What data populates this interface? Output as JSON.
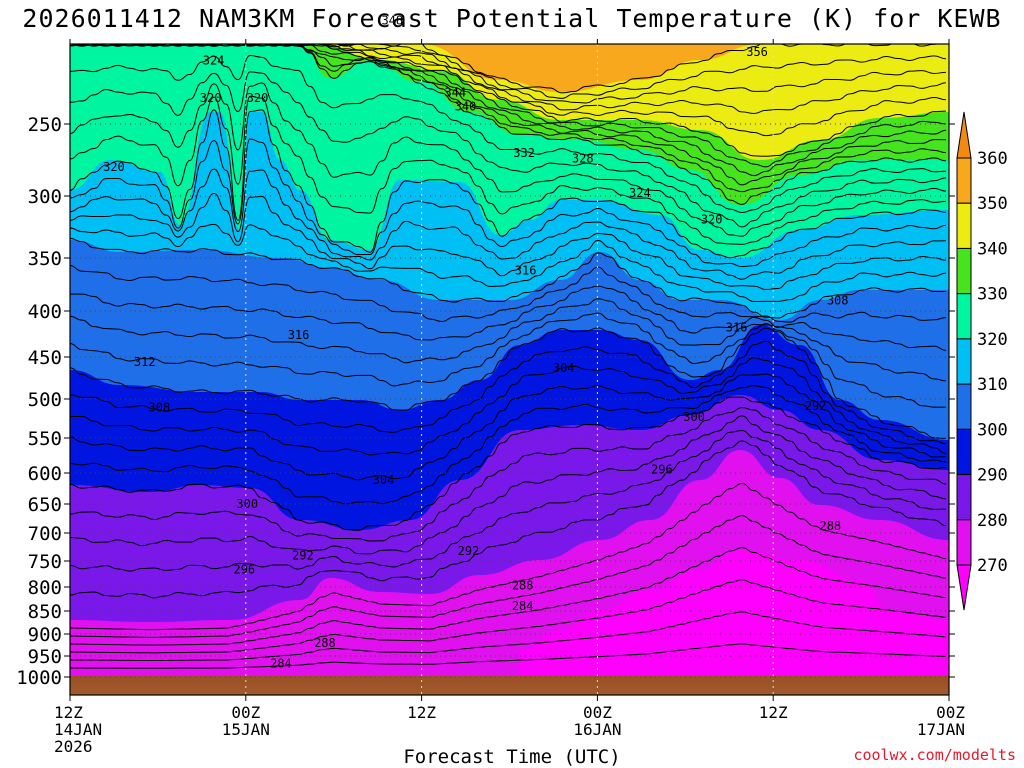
{
  "title": "2026011412 NAM3KM Forecast Potential Temperature (K) for KEWB",
  "credit": "coolwx.com/modelts",
  "chart_data": {
    "type": "heatmap",
    "title": "2026011412 NAM3KM Forecast Potential Temperature (K) for KEWB",
    "xlabel": "Forecast Time (UTC)",
    "ylabel": "",
    "x_ticks": [
      {
        "lines": [
          "12Z",
          "14JAN",
          "2026"
        ],
        "hours": 0
      },
      {
        "lines": [
          "00Z",
          "15JAN"
        ],
        "hours": 12
      },
      {
        "lines": [
          "12Z"
        ],
        "hours": 24
      },
      {
        "lines": [
          "00Z",
          "16JAN"
        ],
        "hours": 36
      },
      {
        "lines": [
          "12Z"
        ],
        "hours": 48
      },
      {
        "lines": [
          "00Z",
          "17JAN"
        ],
        "hours": 60
      }
    ],
    "xlim": [
      0,
      60
    ],
    "y_ticks": [
      "250",
      "300",
      "350",
      "400",
      "450",
      "500",
      "550",
      "600",
      "650",
      "700",
      "750",
      "800",
      "850",
      "900",
      "950",
      "1000"
    ],
    "y_values": [
      250,
      300,
      350,
      400,
      450,
      500,
      550,
      600,
      650,
      700,
      750,
      800,
      850,
      900,
      950,
      1000
    ],
    "colorbar": {
      "labels": [
        "360",
        "350",
        "340",
        "330",
        "320",
        "310",
        "300",
        "290",
        "280",
        "270"
      ],
      "bands": [
        {
          "range": [
            350,
            360
          ],
          "color": "#f7a81c"
        },
        {
          "range": [
            340,
            350
          ],
          "color": "#ecec12"
        },
        {
          "range": [
            330,
            340
          ],
          "color": "#46e41e"
        },
        {
          "range": [
            320,
            330
          ],
          "color": "#00f5a0"
        },
        {
          "range": [
            310,
            320
          ],
          "color": "#00bff4"
        },
        {
          "range": [
            300,
            310
          ],
          "color": "#1f6fe8"
        },
        {
          "range": [
            290,
            300
          ],
          "color": "#0015e0"
        },
        {
          "range": [
            280,
            290
          ],
          "color": "#7a18ea"
        },
        {
          "range": [
            270,
            280
          ],
          "color": "#e110ef"
        }
      ],
      "top_color": "#f28a12",
      "bottom_color": "#ff00ff"
    },
    "contour_labels": [
      {
        "text": "348",
        "hours": 22.0,
        "p": 178
      },
      {
        "text": "344",
        "hours": 26.3,
        "p": 228
      },
      {
        "text": "340",
        "hours": 27.0,
        "p": 238
      },
      {
        "text": "356",
        "hours": 46.9,
        "p": 200
      },
      {
        "text": "324",
        "hours": 9.8,
        "p": 206
      },
      {
        "text": "320",
        "hours": 9.6,
        "p": 232
      },
      {
        "text": "320",
        "hours": 12.8,
        "p": 232
      },
      {
        "text": "320",
        "hours": 3.0,
        "p": 280
      },
      {
        "text": "332",
        "hours": 31.0,
        "p": 270
      },
      {
        "text": "328",
        "hours": 35.0,
        "p": 274
      },
      {
        "text": "324",
        "hours": 38.9,
        "p": 298
      },
      {
        "text": "320",
        "hours": 43.8,
        "p": 319
      },
      {
        "text": "316",
        "hours": 31.1,
        "p": 362
      },
      {
        "text": "308",
        "hours": 52.4,
        "p": 390
      },
      {
        "text": "316",
        "hours": 45.5,
        "p": 418
      },
      {
        "text": "316",
        "hours": 15.6,
        "p": 426
      },
      {
        "text": "312",
        "hours": 5.1,
        "p": 456
      },
      {
        "text": "304",
        "hours": 33.7,
        "p": 463
      },
      {
        "text": "308",
        "hours": 6.1,
        "p": 511
      },
      {
        "text": "300",
        "hours": 42.6,
        "p": 523
      },
      {
        "text": "292",
        "hours": 50.9,
        "p": 509
      },
      {
        "text": "304",
        "hours": 21.4,
        "p": 611
      },
      {
        "text": "296",
        "hours": 40.4,
        "p": 595
      },
      {
        "text": "300",
        "hours": 12.1,
        "p": 650
      },
      {
        "text": "292",
        "hours": 27.2,
        "p": 732
      },
      {
        "text": "288",
        "hours": 51.9,
        "p": 688
      },
      {
        "text": "292",
        "hours": 15.9,
        "p": 740
      },
      {
        "text": "296",
        "hours": 11.9,
        "p": 766
      },
      {
        "text": "288",
        "hours": 30.9,
        "p": 797
      },
      {
        "text": "284",
        "hours": 30.9,
        "p": 840
      },
      {
        "text": "288",
        "hours": 17.4,
        "p": 920
      },
      {
        "text": "284",
        "hours": 14.4,
        "p": 968
      }
    ]
  }
}
